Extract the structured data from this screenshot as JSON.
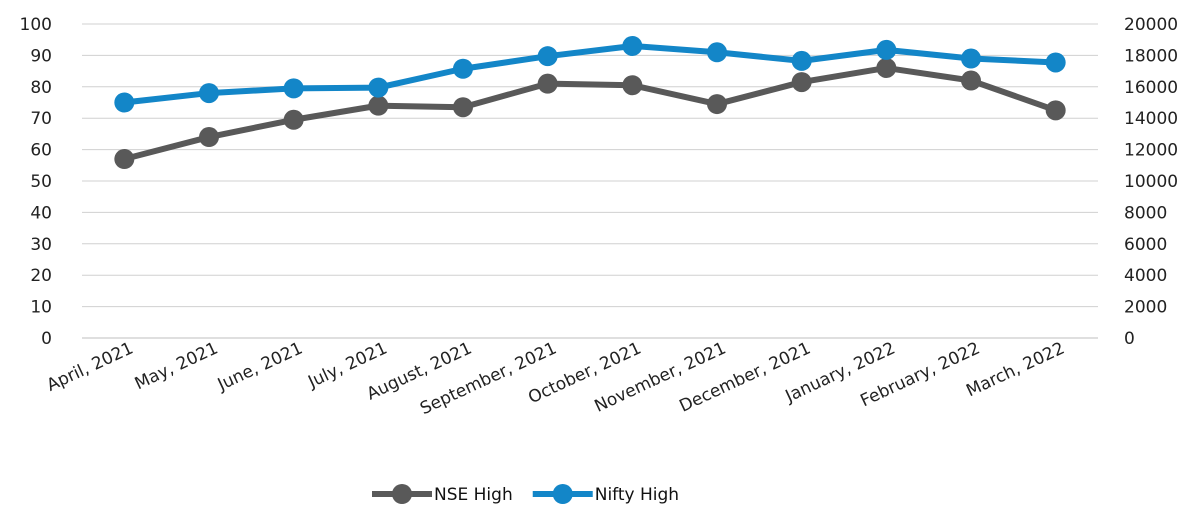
{
  "chart_data": {
    "type": "line",
    "categories": [
      "April, 2021",
      "May, 2021",
      "June, 2021",
      "July, 2021",
      "August, 2021",
      "September, 2021",
      "October, 2021",
      "November, 2021",
      "December, 2021",
      "January, 2022",
      "February, 2022",
      "March, 2022"
    ],
    "series": [
      {
        "name": "NSE High",
        "axis": "left",
        "color": "#595959",
        "values": [
          57,
          64,
          69.5,
          74,
          73.5,
          81,
          80.5,
          74.5,
          81.5,
          86,
          82,
          72.5
        ]
      },
      {
        "name": "Nifty High",
        "axis": "right",
        "color": "#1386c8",
        "values": [
          15000,
          15600,
          15900,
          15950,
          17150,
          17950,
          18600,
          18200,
          17650,
          18350,
          17800,
          17550
        ]
      }
    ],
    "yleft": {
      "min": 0,
      "max": 100,
      "ticks": [
        "0",
        "10",
        "20",
        "30",
        "40",
        "50",
        "60",
        "70",
        "80",
        "90",
        "100"
      ]
    },
    "yright": {
      "min": 0,
      "max": 20000,
      "ticks": [
        "0",
        "2000",
        "4000",
        "6000",
        "8000",
        "10000",
        "12000",
        "14000",
        "16000",
        "18000",
        "20000"
      ]
    },
    "grid": true,
    "legend": "bottom-center",
    "title": "",
    "xlabel": "",
    "ylabel": ""
  }
}
